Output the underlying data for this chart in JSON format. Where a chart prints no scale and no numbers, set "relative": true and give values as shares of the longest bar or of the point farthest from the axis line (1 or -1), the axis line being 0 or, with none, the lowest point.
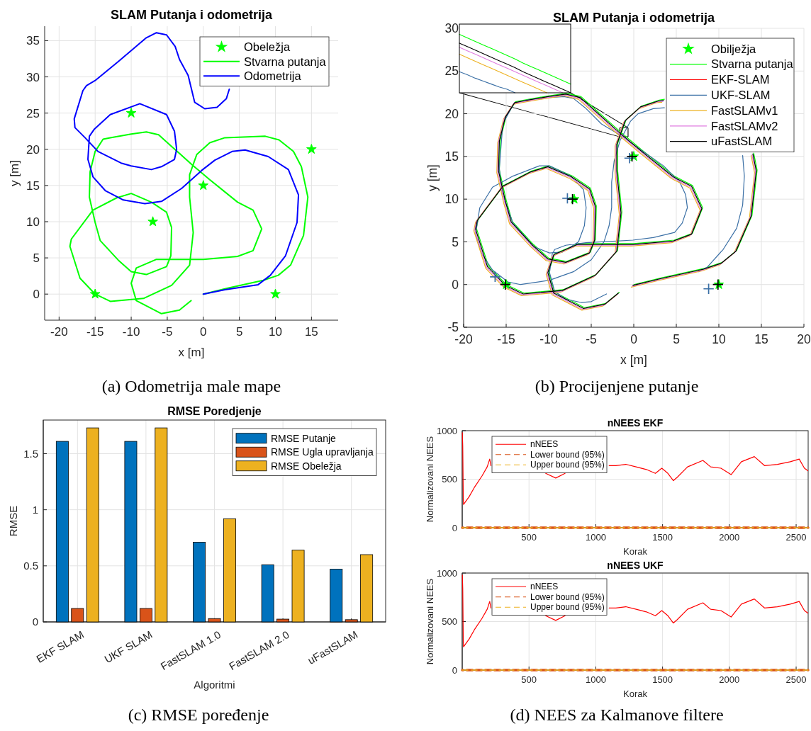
{
  "chart_data": [
    {
      "type": "line",
      "title": "SLAM Putanja i odometrija",
      "xlabel": "x [m]",
      "ylabel": "y [m]",
      "xlim": [
        -22,
        18.7
      ],
      "xticks": [
        -20,
        -15,
        -10,
        -5,
        0,
        5,
        10,
        15
      ],
      "ylim": [
        -3.6,
        37
      ],
      "yticks": [
        0,
        5,
        10,
        15,
        20,
        25,
        30,
        35
      ],
      "grid": true,
      "legend": "top right",
      "annotations": [
        "(a) Odometrija male mape"
      ],
      "series": [
        {
          "name": "Obeležja",
          "type": "scatter",
          "marker": "star",
          "color": "#00ff00",
          "x": [
            -15,
            -10,
            -7,
            0,
            10,
            15
          ],
          "values": [
            0,
            25,
            10,
            15,
            0,
            20
          ]
        },
        {
          "name": "Stvarna putanja",
          "color": "#00ff00",
          "x": [
            0,
            3.3,
            8.3,
            10.4,
            12.1,
            13.9,
            14.5,
            13.6,
            12.5,
            10.5,
            8.6,
            3,
            0.9,
            -0.9,
            -1.9,
            -1.9,
            -1.4,
            -1.9,
            -4.4,
            -8.3,
            -12.9,
            -15,
            -17.1,
            -18.5,
            -18.3,
            -15.3,
            -12,
            -10,
            -7.2,
            -5.1,
            -4.4,
            -4.5,
            -5.1,
            -7.9,
            -10,
            -11.8,
            -14.3,
            -15,
            -15.8,
            -15.7,
            -15,
            -13.9,
            -12.9,
            -10,
            -7.9,
            -6.2,
            -4.4,
            -1.6,
            0.9,
            4.75,
            6.9,
            8.1,
            6.9,
            4.75,
            0,
            -6.5,
            -9.3,
            -10,
            -9.3,
            -5.8,
            -3.3,
            -1.7
          ],
          "values": [
            0,
            0.8,
            1.9,
            2.6,
            4,
            8.1,
            13.4,
            17.6,
            19.7,
            21.3,
            21.8,
            21.6,
            20.9,
            19.3,
            16.5,
            13.4,
            8.5,
            4,
            1.2,
            -0.6,
            -1,
            0,
            2.2,
            6.6,
            7.6,
            11.6,
            13.3,
            13.9,
            12.7,
            11.3,
            9.2,
            5.3,
            3.8,
            2.7,
            3.1,
            4.7,
            7.4,
            9.9,
            13.4,
            16.9,
            19.7,
            21.4,
            21.6,
            22.1,
            22.4,
            22,
            20.4,
            17.9,
            15.8,
            12.7,
            11.6,
            9,
            6,
            5.2,
            4.8,
            4.8,
            3.6,
            1.5,
            -0.9,
            -2.7,
            -2.2,
            -0.9
          ]
        },
        {
          "name": "Odometrija",
          "color": "#0000ff",
          "x": [
            0,
            3,
            7.6,
            9.3,
            11.4,
            13,
            13.2,
            11.8,
            9,
            5.8,
            4,
            1.6,
            -0.2,
            -3,
            -5.8,
            -8.1,
            -11.1,
            -13.6,
            -15.3,
            -16,
            -15.8,
            -15.1,
            -12.9,
            -8.8,
            -5.1,
            -4,
            -3.7,
            -4,
            -5.8,
            -7.2,
            -10,
            -11.4,
            -14.6,
            -16.4,
            -17.8,
            -17.9,
            -16.7,
            -16.2,
            -15,
            -11.8,
            -7.9,
            -6.5,
            -5.1,
            -3.9,
            -3.3,
            -2.1,
            -1.2,
            0.2,
            1.9,
            3.2,
            3.6
          ],
          "values": [
            0,
            0.6,
            1.3,
            2.6,
            5.3,
            9.9,
            13.7,
            17.2,
            19,
            19.9,
            19.7,
            18.5,
            17.1,
            14.6,
            12.8,
            12.5,
            13,
            14.3,
            16.2,
            18.6,
            21.8,
            22.8,
            24.8,
            26.3,
            24.8,
            22.5,
            20,
            18.6,
            17.6,
            17.2,
            17.7,
            18.1,
            19.7,
            21.6,
            23,
            24.2,
            28.1,
            28.8,
            29.5,
            32.1,
            35.4,
            36.1,
            35.8,
            34.2,
            32.4,
            30.2,
            26.5,
            25.6,
            25.8,
            27,
            28.3
          ]
        }
      ]
    },
    {
      "type": "line",
      "title": "SLAM Putanja i odometrija",
      "xlabel": "x [m]",
      "ylabel": "y [m]",
      "xlim": [
        -20,
        20
      ],
      "xticks": [
        -20,
        -15,
        -10,
        -5,
        0,
        5,
        10,
        15,
        20
      ],
      "ylim": [
        -5,
        30
      ],
      "yticks": [
        -5,
        0,
        5,
        10,
        15,
        20,
        25,
        30
      ],
      "grid": true,
      "legend": "top right",
      "annotations": [
        "(b) Procijenjene putanje"
      ],
      "series": [
        {
          "name": "Obilježja",
          "type": "scatter",
          "marker": "star",
          "color": "#00ff00",
          "x": [
            -15,
            -7,
            0,
            10
          ],
          "values": [
            0,
            10,
            15,
            0
          ]
        },
        {
          "name": "Stvarna putanja",
          "color": "#00ff00",
          "x": [
            0,
            3.3,
            8.3,
            10.4,
            12.1,
            13.9,
            14.5,
            14.1,
            10,
            3.6,
            3,
            0.9,
            -0.9,
            -1.9,
            -1.9,
            -1.4,
            -1.9,
            -4.4,
            -8.3,
            -12.9,
            -15,
            -17.1,
            -18.5,
            -18.3,
            -15.3,
            -12,
            -10,
            -7.2,
            -5.1,
            -4.4,
            -4.5,
            -5.1,
            -7.9,
            -10,
            -11.8,
            -14.3,
            -15,
            -15.8,
            -15.7,
            -15,
            -13.9,
            -12.9,
            -10,
            -7.9,
            -6.2,
            -4.4,
            -1.6,
            0.9,
            4.75,
            6.9,
            8.1,
            6.9,
            4.75,
            0,
            -6.5,
            -9.3,
            -10,
            -9.3,
            -5.8,
            -3.3,
            -1.7
          ],
          "values": [
            0,
            0.8,
            1.9,
            2.6,
            4,
            8.1,
            13.4,
            15.4,
            null,
            21.7,
            21.6,
            20.9,
            19.3,
            16.5,
            13.4,
            8.5,
            4,
            1.2,
            -0.6,
            -1,
            0,
            2.2,
            6.6,
            7.6,
            11.6,
            13.3,
            13.9,
            12.7,
            11.3,
            9.2,
            5.3,
            3.8,
            2.7,
            3.1,
            4.7,
            7.4,
            9.9,
            13.4,
            16.9,
            19.7,
            21.4,
            21.6,
            22.1,
            22.4,
            22,
            20.4,
            17.9,
            15.8,
            12.7,
            11.6,
            9,
            6,
            5.2,
            4.8,
            4.8,
            3.6,
            1.5,
            -0.9,
            -2.7,
            -2.2,
            -0.9
          ]
        },
        {
          "name": "EKF-SLAM",
          "color": "#ff0000"
        },
        {
          "name": "UKF-SLAM",
          "color": "#3a6fa5",
          "x": [
            7.6,
            8.6,
            10.5,
            12.1,
            12.8,
            13,
            12.8,
            8,
            3.6,
            2.3,
            0.5,
            -0.4,
            -1.6,
            -2.3,
            -2.6,
            -2.6,
            -2.9,
            -3.5,
            -5,
            -7.1,
            -9.9,
            -13.3,
            -14.8,
            -16.6,
            -17.8,
            -18.6,
            -18.1,
            -16.6,
            -14.2,
            -11.1,
            -9.9,
            -7.4,
            -5.9,
            -5.6,
            -5.8,
            -6.5,
            -8.4,
            -9.9,
            -11.7,
            -14.2,
            -15.5,
            -15.8,
            -15.4,
            -14.1,
            -12.6,
            -9.9,
            -8.2,
            -7.1,
            -5.6,
            -3.8,
            -1.6,
            0.5,
            3.5,
            5.4,
            6.1,
            6.3,
            5.7,
            4.8,
            2.3,
            -0.1,
            -5.6,
            -8,
            -9.3,
            -9.6,
            -9.9,
            -9.3,
            -8,
            -6.2,
            -5,
            -3.2
          ],
          "values": [
            1.5,
            2,
            4.1,
            6.6,
            9.3,
            12.7,
            15.1,
            null,
            20.7,
            20.6,
            20,
            19.1,
            16.9,
            14.5,
            12,
            9,
            6.9,
            5,
            2.9,
            1.5,
            0.5,
            0,
            0.3,
            1.7,
            3.5,
            5.9,
            9,
            11.4,
            12.7,
            13.9,
            13.9,
            12.7,
            11.1,
            9,
            6.9,
            5,
            3.8,
            3.7,
            4.4,
            7.2,
            10.8,
            13.6,
            18.8,
            21.2,
            21.6,
            21.9,
            22,
            21.8,
            20.6,
            18.8,
            17.5,
            16,
            13.9,
            12,
            10.5,
            9,
            7.2,
            6.1,
            5.5,
            5.2,
            4.9,
            4.6,
            4.1,
            3.5,
            1.4,
            -0.8,
            -1.7,
            -2.1,
            -2,
            -1.1
          ]
        },
        {
          "name": "FastSLAMv1",
          "color": "#edb120",
          "x": [
            -0.3,
            3,
            8,
            10.1,
            11.8,
            13.6,
            14.2,
            13.8,
            9.7,
            3.3,
            2.7,
            0.6,
            -1.2,
            -2.2,
            -2.2,
            -1.7,
            -2.2,
            -4.7,
            -8.6,
            -13.2,
            -15.3,
            -17.4,
            -18.8,
            -18.6,
            -15.6,
            -12.3,
            -10.3,
            -7.5,
            -5.4,
            -4.7,
            -4.8,
            -5.4,
            -8.2,
            -10.3,
            -12.1,
            -14.6,
            -15.3,
            -16.1,
            -16,
            -15.3,
            -14.2,
            -13.2,
            -10.3,
            -8.2,
            -6.5,
            -4.7,
            -1.9,
            0.6,
            4.45,
            6.6,
            7.8,
            6.6,
            4.45,
            -0.3,
            -6.8,
            -9.6,
            -10.3,
            -9.6,
            -6.1,
            -3.6,
            -2
          ],
          "values": [
            -0.3,
            0.5,
            1.6,
            2.3,
            3.7,
            7.8,
            13.1,
            15.1,
            null,
            21.35,
            21.3,
            20.6,
            19,
            16.2,
            13.1,
            8.2,
            3.7,
            0.9,
            -0.9,
            -1.3,
            -0.3,
            1.9,
            6.3,
            7.3,
            11.3,
            13,
            13.6,
            12.4,
            11,
            8.9,
            5,
            3.5,
            2.4,
            2.8,
            4.4,
            7.1,
            9.6,
            13.1,
            16.6,
            19.4,
            21.1,
            21.3,
            21.8,
            22.1,
            21.7,
            20.1,
            17.6,
            15.5,
            12.4,
            11.3,
            8.7,
            5.7,
            4.9,
            4.5,
            4.5,
            3.3,
            1.2,
            -1.2,
            -3,
            -2.5,
            -1.2
          ]
        },
        {
          "name": "FastSLAMv2",
          "color": "#e07be0",
          "x": [
            -0.2,
            3.1,
            8.1,
            10.2,
            11.9,
            13.7,
            14.3,
            13.9,
            9.8,
            3.4,
            2.8,
            0.7,
            -1.1,
            -2.1,
            -2.1,
            -1.6,
            -2.1,
            -4.6,
            -8.5,
            -13.1,
            -15.2,
            -17.3,
            -18.7,
            -18.5,
            -15.5,
            -12.2,
            -10.2,
            -7.4,
            -5.3,
            -4.6,
            -4.7,
            -5.3,
            -8.1,
            -10.2,
            -12,
            -14.5,
            -15.2,
            -16,
            -15.9,
            -15.2,
            -14.1,
            -13.1,
            -10.2,
            -8.1,
            -6.4,
            -4.6,
            -1.8,
            0.7,
            4.55,
            6.7,
            7.9,
            6.7,
            4.55,
            -0.2,
            -6.7,
            -9.5,
            -10.2,
            -9.5,
            -6,
            -3.5,
            -1.9
          ],
          "values": [
            -0.2,
            0.6,
            1.7,
            2.4,
            3.8,
            7.9,
            13.2,
            15.2,
            null,
            21.45,
            21.4,
            20.7,
            19.1,
            16.3,
            13.2,
            8.3,
            3.8,
            1,
            -0.8,
            -1.2,
            -0.2,
            2,
            6.4,
            7.4,
            11.4,
            13.1,
            13.7,
            12.5,
            11.1,
            9,
            5.1,
            3.6,
            2.5,
            2.9,
            4.5,
            7.2,
            9.7,
            13.2,
            16.7,
            19.5,
            21.2,
            21.4,
            21.9,
            22.2,
            21.8,
            20.2,
            17.7,
            15.6,
            12.5,
            11.4,
            8.8,
            5.8,
            5,
            4.6,
            4.6,
            3.4,
            1.3,
            -1.1,
            -2.9,
            -2.4,
            -1.1
          ]
        },
        {
          "name": "uFastSLAM",
          "color": "#000000",
          "x": [
            -0.1,
            3.2,
            8.2,
            10.3,
            12,
            13.8,
            14.4,
            14,
            9.9,
            3.5,
            2.9,
            0.8,
            -1,
            -2,
            -2,
            -1.5,
            -2,
            -4.5,
            -8.4,
            -13,
            -15.1,
            -17.2,
            -18.6,
            -18.4,
            -15.4,
            -12.1,
            -10.1,
            -7.3,
            -5.2,
            -4.5,
            -4.6,
            -5.2,
            -8,
            -10.1,
            -11.9,
            -14.4,
            -15.1,
            -15.9,
            -15.8,
            -15.1,
            -14,
            -13,
            -10.1,
            -8,
            -6.3,
            -4.5,
            -1.7,
            0.8,
            4.65,
            6.8,
            8,
            6.8,
            4.65,
            -0.1,
            -6.6,
            -9.4,
            -10.1,
            -9.4,
            -5.9,
            -3.4,
            -1.8
          ],
          "values": [
            -0.1,
            0.7,
            1.8,
            2.5,
            3.9,
            8,
            13.3,
            15.3,
            null,
            21.55,
            21.5,
            20.8,
            19.2,
            16.4,
            13.3,
            8.4,
            3.9,
            1.1,
            -0.7,
            -1.1,
            -0.1,
            2.1,
            6.5,
            7.5,
            11.5,
            13.2,
            13.8,
            12.6,
            11.2,
            9.1,
            5.2,
            3.7,
            2.6,
            3,
            4.6,
            7.3,
            9.8,
            13.3,
            16.8,
            19.6,
            21.3,
            21.5,
            22,
            22.3,
            21.9,
            20.3,
            17.8,
            15.7,
            12.6,
            11.5,
            8.9,
            5.9,
            5.1,
            4.7,
            4.7,
            3.5,
            1.4,
            -1,
            -2.8,
            -2.3,
            -1
          ]
        },
        {
          "type": "scatter",
          "marker": "cross",
          "color": "#3a6fa5",
          "x": [
            -16.3,
            -7.8,
            -0.5,
            8.8
          ],
          "values": [
            0.9,
            10.1,
            14.8,
            -0.5
          ]
        },
        {
          "type": "scatter",
          "marker": "cross",
          "color": "#000000",
          "x": [
            -15.1,
            -7.2,
            -0.2,
            9.9
          ],
          "values": [
            0,
            10,
            15,
            0
          ]
        }
      ]
    },
    {
      "type": "line",
      "relative": true,
      "categories": [
        null,
        null,
        null,
        null,
        null,
        null,
        null,
        null,
        null,
        null,
        null,
        null,
        null,
        null,
        null
      ],
      "series": [
        {
          "color": "#00ff00",
          "values": [
            1,
            0.94,
            0.88,
            0.82,
            0.76,
            0.7,
            0.64,
            0.58,
            0.51,
            0.45,
            0.39,
            0.33,
            0.27,
            0.21,
            0.15
          ]
        },
        {
          "color": "#000000",
          "values": [
            0.85,
            0.79,
            0.73,
            0.67,
            0.61,
            0.55,
            0.49,
            0.43,
            0.36,
            0.3,
            0.24,
            0.18,
            0.12,
            0.06,
            0
          ]
        },
        {
          "color": "#e07be0",
          "values": [
            0.78,
            0.72,
            0.66,
            0.6,
            0.54,
            0.48,
            0.42,
            0.36,
            0.3,
            0.24,
            0.18,
            0.12,
            0.06,
            0,
            null
          ]
        },
        {
          "color": "#edb120",
          "values": [
            0.66,
            0.6,
            0.54,
            0.48,
            0.42,
            0.36,
            0.3,
            0.24,
            0.18,
            0.12,
            0.06,
            0,
            null,
            null,
            null
          ]
        },
        {
          "color": "#3a6fa5",
          "values": [
            0.36,
            0.31,
            0.25,
            0.2,
            0.15,
            0.1,
            0.06,
            0,
            null,
            null,
            null,
            null,
            null,
            null,
            null
          ]
        }
      ]
    },
    {
      "type": "bar",
      "title": "RMSE Poredjenje",
      "xlabel": "Algoritmi",
      "ylabel": "RMSE",
      "categories": [
        "EKF SLAM",
        "UKF SLAM",
        "FastSLAM 1.0",
        "FastSLAM 2.0",
        "uFastSLAM"
      ],
      "ylim": [
        0,
        1.8
      ],
      "yticks": [
        0,
        0.5,
        1,
        1.5
      ],
      "grid": true,
      "legend": "top right",
      "annotations": [
        "(c) RMSE poređenje"
      ],
      "series": [
        {
          "name": "RMSE Putanje",
          "color": "#0072bd",
          "values": [
            1.61,
            1.61,
            0.71,
            0.51,
            0.47
          ]
        },
        {
          "name": "RMSE Ugla upravljanja",
          "color": "#d95319",
          "values": [
            0.12,
            0.12,
            0.03,
            0.025,
            0.02
          ]
        },
        {
          "name": "RMSE Obeležja",
          "color": "#edb120",
          "values": [
            1.73,
            1.73,
            0.92,
            0.64,
            0.6
          ]
        }
      ]
    },
    {
      "type": "line",
      "title": "nNEES EKF",
      "xlabel": "Korak",
      "ylabel": "Normalizovani NEES",
      "xlim": [
        0,
        2590
      ],
      "xticks": [
        500,
        1000,
        1500,
        2000,
        2500
      ],
      "ylim": [
        0,
        1000
      ],
      "yticks": [
        0,
        500,
        1000
      ],
      "grid": true,
      "legend": "top left",
      "series": [
        {
          "name": "nNEES",
          "color": "#ff0000",
          "x": [
            1,
            4,
            8,
            10,
            52,
            90,
            148,
            187,
            206,
            215,
            400,
            625,
            700,
            770,
            900,
            1100,
            1150,
            1225,
            1302,
            1379,
            1446,
            1494,
            1540,
            1581,
            1610,
            1687,
            1802,
            1860,
            1937,
            2013,
            2090,
            2187,
            2263,
            2360,
            2456,
            2523,
            2562,
            2587
          ],
          "values": [
            980,
            840,
            300,
            240,
            320,
            413,
            533,
            627,
            707,
            640,
            null,
            560,
            512,
            560,
            null,
            640,
            640,
            653,
            627,
            600,
            560,
            613,
            560,
            485,
            520,
            627,
            693,
            627,
            613,
            547,
            680,
            733,
            640,
            653,
            680,
            707,
            613,
            587
          ]
        },
        {
          "name": "Lower bound (95%)",
          "color": "#d95319",
          "line_style": "dashed",
          "x": [
            0,
            2590
          ],
          "values": [
            0,
            0
          ]
        },
        {
          "name": "Upper bound (95%)",
          "color": "#edb120",
          "line_style": "dashed",
          "x": [
            0,
            2590
          ],
          "values": [
            0,
            0
          ]
        }
      ]
    },
    {
      "type": "line",
      "title": "nNEES UKF",
      "xlabel": "Korak",
      "ylabel": "Normalizovani NEES",
      "xlim": [
        0,
        2590
      ],
      "xticks": [
        500,
        1000,
        1500,
        2000,
        2500
      ],
      "ylim": [
        0,
        1000
      ],
      "yticks": [
        0,
        500,
        1000
      ],
      "grid": true,
      "legend": "top left",
      "annotations": [
        "(d) NEES za Kalmanove filtere"
      ],
      "series": [
        {
          "name": "nNEES",
          "color": "#ff0000",
          "x": [
            1,
            4,
            8,
            10,
            52,
            90,
            148,
            187,
            206,
            215,
            400,
            625,
            700,
            770,
            900,
            1100,
            1150,
            1225,
            1302,
            1379,
            1446,
            1494,
            1540,
            1581,
            1610,
            1687,
            1802,
            1860,
            1937,
            2013,
            2090,
            2187,
            2263,
            2360,
            2456,
            2523,
            2562,
            2587
          ],
          "values": [
            980,
            840,
            300,
            240,
            320,
            413,
            533,
            627,
            707,
            640,
            null,
            560,
            512,
            560,
            null,
            640,
            640,
            653,
            627,
            600,
            560,
            613,
            560,
            485,
            520,
            627,
            693,
            627,
            613,
            547,
            680,
            733,
            640,
            653,
            680,
            707,
            613,
            587
          ]
        },
        {
          "name": "Lower bound (95%)",
          "color": "#d95319",
          "line_style": "dashed",
          "x": [
            0,
            2590
          ],
          "values": [
            0,
            0
          ]
        },
        {
          "name": "Upper bound (95%)",
          "color": "#edb120",
          "line_style": "dashed",
          "x": [
            0,
            2590
          ],
          "values": [
            0,
            0
          ]
        }
      ]
    }
  ]
}
